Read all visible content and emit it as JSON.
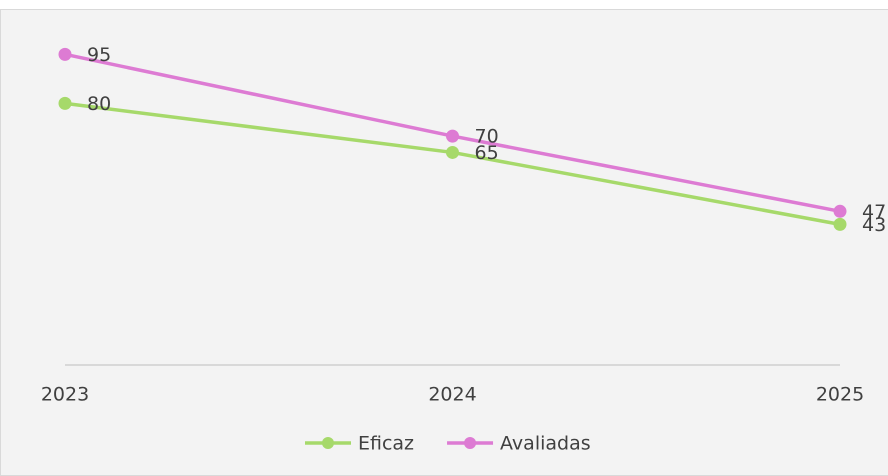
{
  "chart_data": {
    "type": "line",
    "categories": [
      "2023",
      "2024",
      "2025"
    ],
    "series": [
      {
        "name": "Eficaz",
        "color": "#a6d96a",
        "values": [
          80,
          65,
          43
        ]
      },
      {
        "name": "Avaliadas",
        "color": "#dd7bd3",
        "values": [
          95,
          70,
          47
        ]
      }
    ],
    "legend": "bottom"
  }
}
